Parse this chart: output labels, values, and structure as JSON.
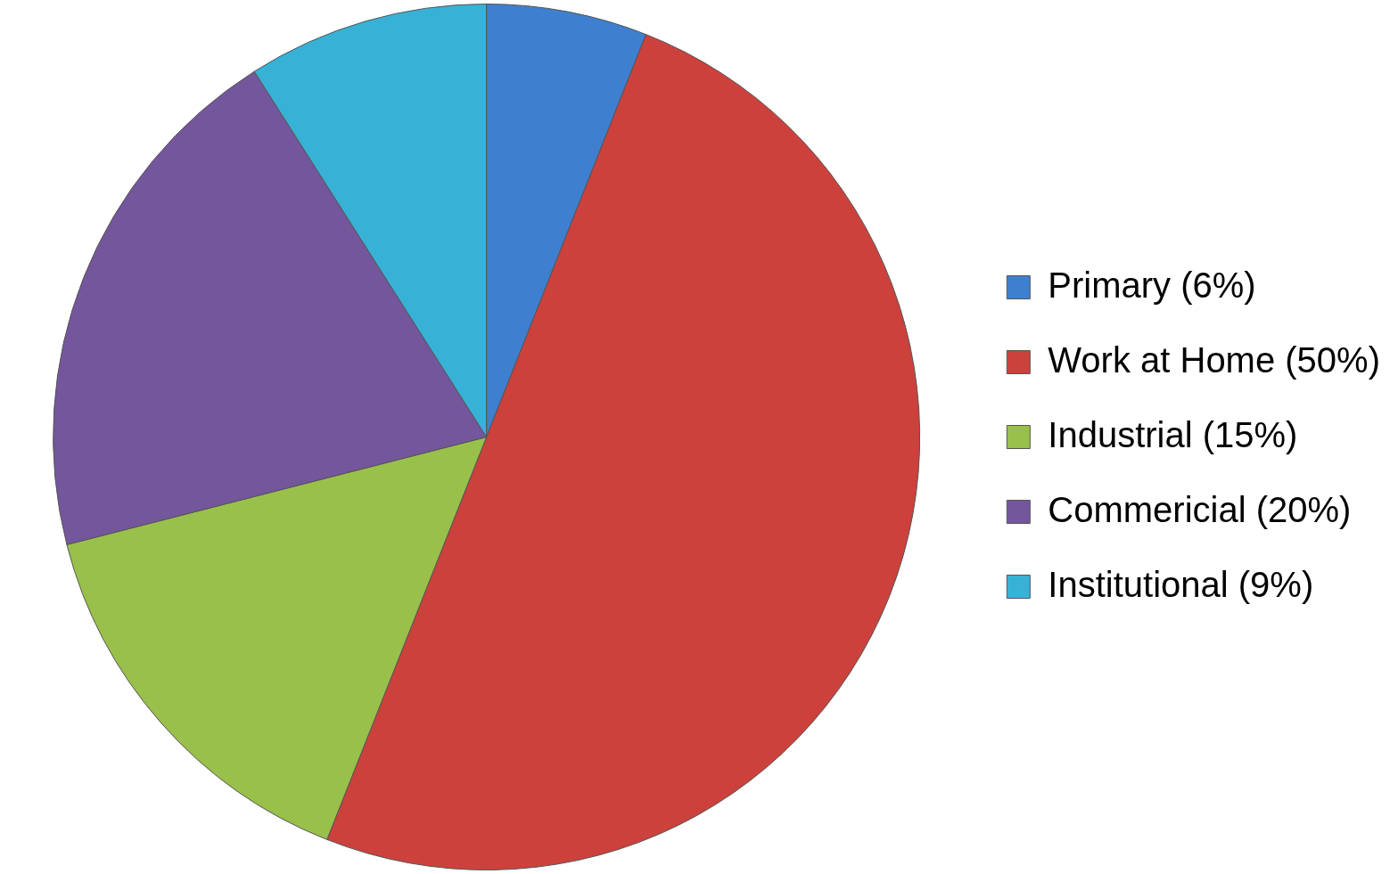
{
  "chart_data": {
    "type": "pie",
    "categories": [
      "Primary (6%)",
      "Work at Home (50%)",
      "Industrial (15%)",
      "Commericial (20%)",
      "Institutional (9%)"
    ],
    "values": [
      6,
      50,
      15,
      20,
      9
    ],
    "colors": [
      "#3f7fcf",
      "#cc413c",
      "#99c04a",
      "#74569c",
      "#37b2d6"
    ],
    "legend": "right"
  }
}
